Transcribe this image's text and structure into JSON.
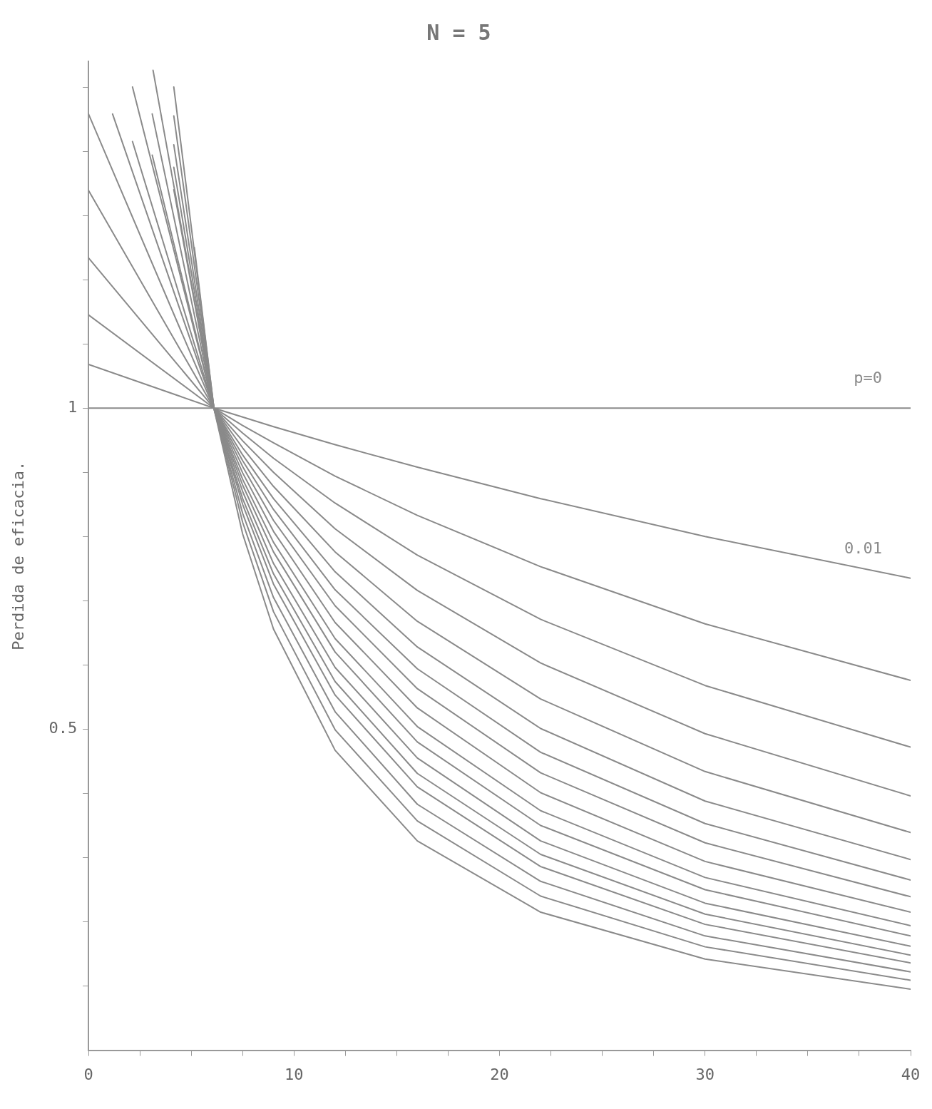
{
  "chart_data": {
    "type": "line",
    "title": "N = 5",
    "ylabel": "Perdida de eficacia.",
    "xlim": [
      0,
      40
    ],
    "ylim": [
      0,
      1.54
    ],
    "xticks": [
      0,
      {
        "value": 2.5,
        "label": null
      },
      {
        "value": 5,
        "label": null
      },
      {
        "value": 7.5,
        "label": null
      },
      10,
      {
        "value": 12.5,
        "label": null
      },
      {
        "value": 15,
        "label": null
      },
      {
        "value": 17.5,
        "label": null
      },
      20,
      {
        "value": 22.5,
        "label": null
      },
      {
        "value": 25,
        "label": null
      },
      {
        "value": 27.5,
        "label": null
      },
      30,
      {
        "value": 32.5,
        "label": null
      },
      {
        "value": 35,
        "label": null
      },
      {
        "value": 37.5,
        "label": null
      },
      40
    ],
    "yticks": [
      {
        "value": 0.1,
        "label": null
      },
      {
        "value": 0.2,
        "label": null
      },
      {
        "value": 0.3,
        "label": null
      },
      {
        "value": 0.4,
        "label": null
      },
      0.5,
      {
        "value": 0.6,
        "label": null
      },
      {
        "value": 0.7,
        "label": null
      },
      {
        "value": 0.8,
        "label": null
      },
      {
        "value": 0.9,
        "label": null
      },
      1,
      {
        "value": 1.1,
        "label": null
      },
      {
        "value": 1.2,
        "label": null
      },
      {
        "value": 1.3,
        "label": null
      },
      {
        "value": 1.4,
        "label": null
      },
      {
        "value": 1.5,
        "label": null
      }
    ],
    "grid": false,
    "legend": false,
    "marker": "none",
    "line_style": "solid",
    "series": [
      {
        "name": "p=0",
        "color": "#8a8a8a",
        "x": [
          0,
          40
        ],
        "values": [
          1,
          1
        ]
      },
      {
        "name": "0.01",
        "color": "#8a8a8a",
        "x": [
          0,
          6.1,
          7.5,
          9,
          12,
          16,
          22,
          30,
          40
        ],
        "values": [
          1.068,
          1,
          0.986,
          0.971,
          0.943,
          0.908,
          0.859,
          0.8,
          0.735
        ]
      },
      {
        "color": "#8a8a8a",
        "x": [
          0,
          6.1,
          7.5,
          9,
          12,
          16,
          22,
          30,
          40
        ],
        "values": [
          1.145,
          1,
          0.973,
          0.946,
          0.894,
          0.833,
          0.753,
          0.664,
          0.576
        ]
      },
      {
        "color": "#8a8a8a",
        "x": [
          0,
          6.1,
          7.5,
          9,
          12,
          16,
          22,
          30,
          40
        ],
        "values": [
          1.234,
          1,
          0.961,
          0.922,
          0.852,
          0.771,
          0.671,
          0.568,
          0.472
        ]
      },
      {
        "color": "#8a8a8a",
        "x": [
          0,
          6.1,
          7.5,
          9,
          12,
          16,
          22,
          30,
          40
        ],
        "values": [
          1.339,
          1,
          0.949,
          0.9,
          0.812,
          0.716,
          0.603,
          0.493,
          0.396
        ]
      },
      {
        "color": "#8a8a8a",
        "x": [
          0,
          6.1,
          7.5,
          9,
          12,
          16,
          22,
          30,
          40
        ],
        "values": [
          1.458,
          1,
          0.938,
          0.878,
          0.776,
          0.668,
          0.547,
          0.434,
          0.339
        ]
      },
      {
        "color": "#8a8a8a",
        "x": [
          1.17,
          6.1,
          7.5,
          9,
          12,
          16,
          22,
          30,
          40
        ],
        "values": [
          1.458,
          1,
          0.927,
          0.859,
          0.745,
          0.628,
          0.501,
          0.388,
          0.297
        ]
      },
      {
        "color": "#8a8a8a",
        "x": [
          2.14,
          6.1,
          7.5,
          9,
          12,
          16,
          22,
          30,
          40
        ],
        "values": [
          1.415,
          1,
          0.918,
          0.842,
          0.717,
          0.594,
          0.464,
          0.353,
          0.265
        ]
      },
      {
        "color": "#8a8a8a",
        "x": [
          2.14,
          6.1,
          7.5,
          9,
          12,
          16,
          22,
          30,
          40
        ],
        "values": [
          1.5,
          1,
          0.909,
          0.825,
          0.692,
          0.563,
          0.432,
          0.323,
          0.239
        ]
      },
      {
        "color": "#8a8a8a",
        "x": [
          3.1,
          6.1,
          7.5,
          9,
          12,
          16,
          22,
          30,
          40
        ],
        "values": [
          1.394,
          1,
          0.899,
          0.808,
          0.666,
          0.533,
          0.401,
          0.294,
          0.215
        ]
      },
      {
        "color": "#8a8a8a",
        "x": [
          3.1,
          6.1,
          7.5,
          9,
          12,
          16,
          22,
          30,
          40
        ],
        "values": [
          1.458,
          1,
          0.889,
          0.791,
          0.641,
          0.504,
          0.373,
          0.269,
          0.194
        ]
      },
      {
        "color": "#8a8a8a",
        "x": [
          4.15,
          6.1,
          7.5,
          9,
          12,
          16,
          22,
          30,
          40
        ],
        "values": [
          1.34,
          1,
          0.88,
          0.776,
          0.62,
          0.48,
          0.35,
          0.25,
          0.178
        ]
      },
      {
        "color": "#8a8a8a",
        "x": [
          3.14,
          6.1,
          7.5,
          9,
          12,
          16,
          22,
          30,
          40
        ],
        "values": [
          1.526,
          1,
          0.87,
          0.758,
          0.596,
          0.455,
          0.326,
          0.229,
          0.162
        ]
      },
      {
        "color": "#8a8a8a",
        "x": [
          4.15,
          6.1,
          7.5,
          9,
          12,
          16,
          22,
          30,
          40
        ],
        "values": [
          1.375,
          1,
          0.859,
          0.742,
          0.574,
          0.431,
          0.305,
          0.212,
          0.148
        ]
      },
      {
        "color": "#8a8a8a",
        "x": [
          4.15,
          6.1,
          7.5,
          9,
          12,
          16,
          22,
          30,
          40
        ],
        "values": [
          1.41,
          1,
          0.85,
          0.726,
          0.553,
          0.41,
          0.286,
          0.196,
          0.136
        ]
      },
      {
        "color": "#8a8a8a",
        "x": [
          4.15,
          6.1,
          7.5,
          9,
          12,
          16,
          22,
          30,
          40
        ],
        "values": [
          1.455,
          1,
          0.836,
          0.705,
          0.527,
          0.383,
          0.263,
          0.178,
          0.122
        ]
      },
      {
        "color": "#8a8a8a",
        "x": [
          4.15,
          6.1,
          7.5,
          9,
          12,
          16,
          22,
          30,
          40
        ],
        "values": [
          1.5,
          1,
          0.822,
          0.683,
          0.499,
          0.357,
          0.24,
          0.161,
          0.109
        ]
      },
      {
        "color": "#8a8a8a",
        "x": [
          5.15,
          6.1,
          7.5,
          9,
          12,
          16,
          22,
          30,
          40
        ],
        "values": [
          1.25,
          1,
          0.804,
          0.656,
          0.467,
          0.326,
          0.215,
          0.142,
          0.095
        ]
      }
    ]
  }
}
